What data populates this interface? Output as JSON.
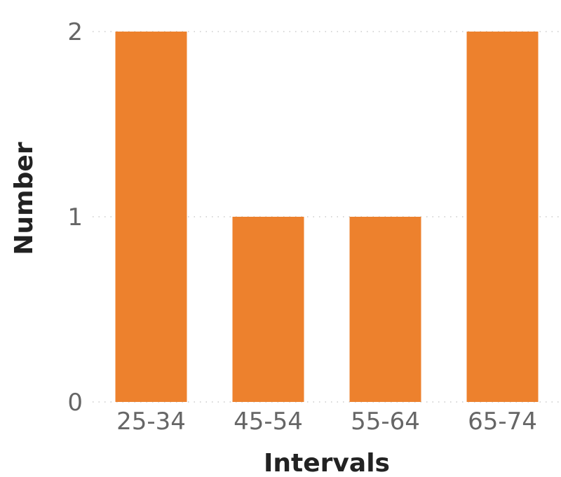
{
  "chart_data": {
    "type": "bar",
    "title": "",
    "xlabel": "Intervals",
    "ylabel": "Number",
    "categories": [
      "25-34",
      "45-54",
      "55-64",
      "65-74"
    ],
    "values": [
      2,
      1,
      1,
      2
    ],
    "ylim": [
      0,
      2
    ],
    "yticks": [
      "0",
      "1",
      "2"
    ],
    "grid": true,
    "legend": "none",
    "bar_color": "#ED812D",
    "gridline_color": "#cccccc"
  }
}
